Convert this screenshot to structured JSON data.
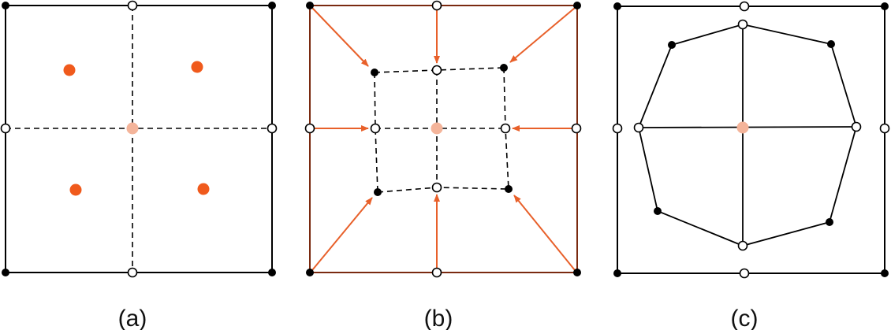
{
  "colors": {
    "line": "#000000",
    "accent": "#f05a1c",
    "center": "#f4b49a",
    "hollow_fill": "#ffffff",
    "arrow": "#e8602a"
  },
  "panels": [
    {
      "caption": "(a)"
    },
    {
      "caption": "(b)"
    },
    {
      "caption": "(c)"
    }
  ]
}
